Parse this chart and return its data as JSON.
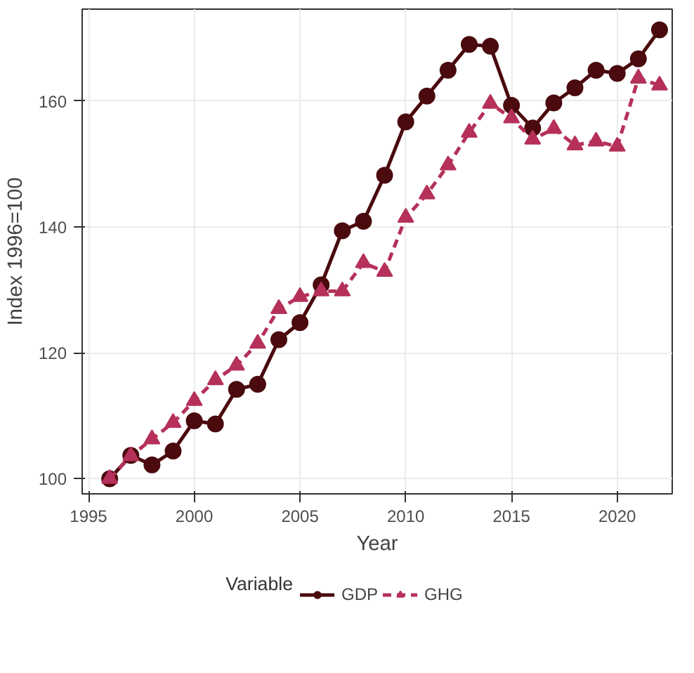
{
  "chart_data": {
    "type": "line",
    "xlabel": "Year",
    "ylabel": "Index 1996=100",
    "legend_title": "Variable",
    "legend": "bottom",
    "grid": true,
    "x": [
      1996,
      1997,
      1998,
      1999,
      2000,
      2001,
      2002,
      2003,
      2004,
      2005,
      2006,
      2007,
      2008,
      2009,
      2010,
      2011,
      2012,
      2013,
      2014,
      2015,
      2016,
      2017,
      2018,
      2019,
      2020,
      2021,
      2022
    ],
    "xlim": [
      1994.7,
      2022.6
    ],
    "xticks": [
      1995,
      2000,
      2005,
      2010,
      2015,
      2020
    ],
    "ylim": [
      97.6,
      174.6
    ],
    "yticks": [
      100,
      120,
      140,
      160
    ],
    "series": [
      {
        "name": "GDP",
        "color": "#4a0a0e",
        "marker": "circle",
        "line_style": "solid",
        "values": [
          100,
          103.7,
          102.2,
          104.4,
          109.2,
          108.7,
          114.2,
          115,
          122.1,
          124.8,
          130.8,
          139.4,
          140.9,
          148.2,
          156.7,
          160.8,
          164.9,
          169,
          168.7,
          159.3,
          155.7,
          159.7,
          162.1,
          164.9,
          164.4,
          166.7,
          171.3
        ]
      },
      {
        "name": "GHG",
        "color": "#b5315a",
        "marker": "triangle",
        "line_style": "dashed",
        "values": [
          100,
          103.6,
          106.3,
          108.9,
          112.4,
          115.7,
          118,
          121.5,
          127,
          128.9,
          129.8,
          129.8,
          134.3,
          132.9,
          141.5,
          145.2,
          149.8,
          155,
          159.6,
          157.3,
          153.9,
          155.6,
          153,
          153.6,
          152.8,
          163.6,
          162.5
        ]
      }
    ]
  }
}
